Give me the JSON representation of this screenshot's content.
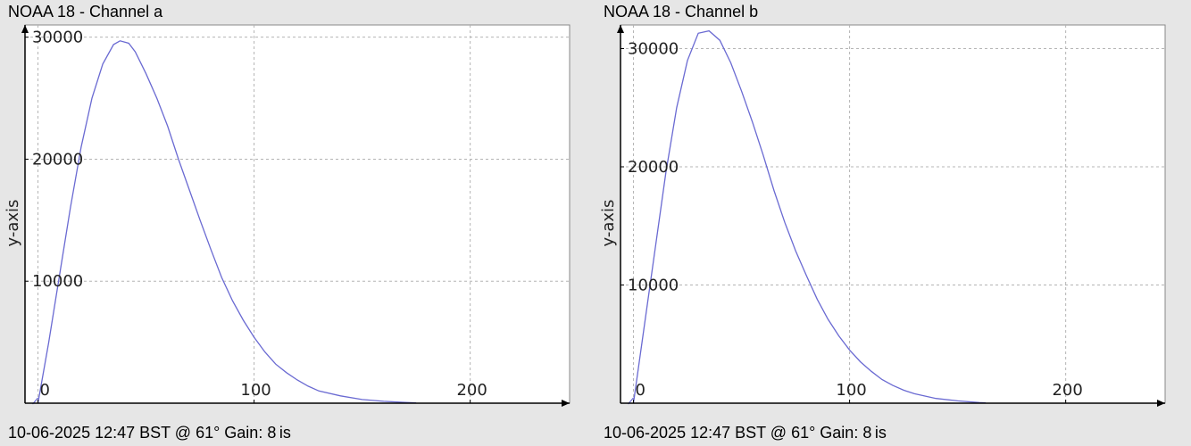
{
  "chart_data": [
    {
      "type": "line",
      "title": "NOAA 18 - Channel a",
      "footer": "10-06-2025 12:47 BST @ 61° Gain: 8 is",
      "ylabel": "y-axis",
      "xlabel": "",
      "xlim": [
        -6,
        246
      ],
      "ylim": [
        0,
        31000
      ],
      "xticks": [
        0,
        100,
        200
      ],
      "yticks": [
        10000,
        20000,
        30000
      ],
      "grid": true,
      "line_color": "#6a6ad2",
      "series": [
        {
          "x": [
            0,
            5,
            10,
            15,
            20,
            25,
            30,
            35,
            38,
            42,
            45,
            50,
            55,
            60,
            65,
            70,
            75,
            80,
            85,
            90,
            95,
            100,
            105,
            110,
            115,
            120,
            125,
            130,
            140,
            150,
            160,
            170,
            175
          ],
          "y": [
            0,
            5000,
            10500,
            16000,
            21000,
            25000,
            27800,
            29400,
            29700,
            29500,
            28800,
            27000,
            25000,
            22700,
            20000,
            17500,
            15000,
            12600,
            10300,
            8400,
            6800,
            5400,
            4200,
            3200,
            2500,
            1900,
            1400,
            1000,
            600,
            300,
            150,
            60,
            30
          ]
        }
      ]
    },
    {
      "type": "line",
      "title": "NOAA 18 - Channel b",
      "footer": "10-06-2025 12:47 BST @ 61° Gain: 8 is",
      "ylabel": "y-axis",
      "xlabel": "",
      "xlim": [
        -6,
        246
      ],
      "ylim": [
        0,
        32000
      ],
      "xticks": [
        0,
        100,
        200
      ],
      "yticks": [
        10000,
        20000,
        30000
      ],
      "grid": true,
      "line_color": "#6a6ad2",
      "series": [
        {
          "x": [
            0,
            5,
            10,
            15,
            20,
            25,
            30,
            35,
            40,
            45,
            50,
            55,
            60,
            65,
            70,
            75,
            80,
            85,
            90,
            95,
            100,
            105,
            110,
            115,
            120,
            125,
            130,
            140,
            150,
            160,
            163
          ],
          "y": [
            0,
            6500,
            13000,
            19500,
            25000,
            29000,
            31300,
            31500,
            30700,
            28800,
            26400,
            23800,
            21000,
            18000,
            15300,
            12900,
            10800,
            8800,
            7100,
            5700,
            4500,
            3500,
            2700,
            2000,
            1500,
            1100,
            800,
            400,
            200,
            50,
            30
          ]
        }
      ]
    }
  ]
}
